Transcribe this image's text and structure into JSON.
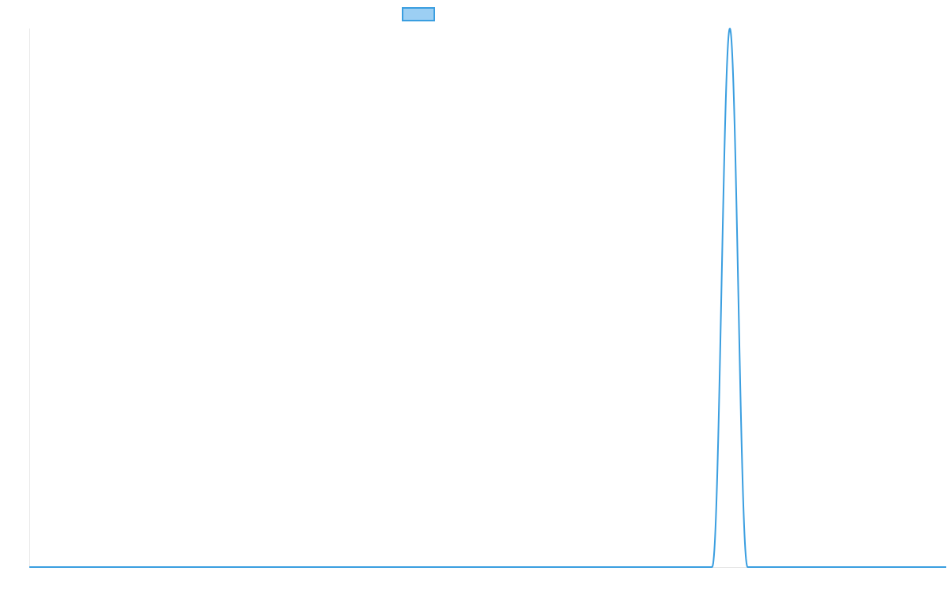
{
  "chart_data": {
    "type": "line",
    "title": "",
    "xlabel": "",
    "ylabel": "",
    "grid": false,
    "legend": {
      "placement": "top-center",
      "entries": [
        {
          "label": "",
          "swatch_fill": "#9ccff3",
          "swatch_stroke": "#3a9ee0"
        }
      ]
    },
    "xlim": [
      0,
      1
    ],
    "ylim": [
      0,
      1
    ],
    "series": [
      {
        "color": "#3a9ee0",
        "peak_center": 0.764,
        "peak_halfwidth": 0.0195,
        "peak_height": 1.0,
        "baseline": 0
      }
    ]
  }
}
